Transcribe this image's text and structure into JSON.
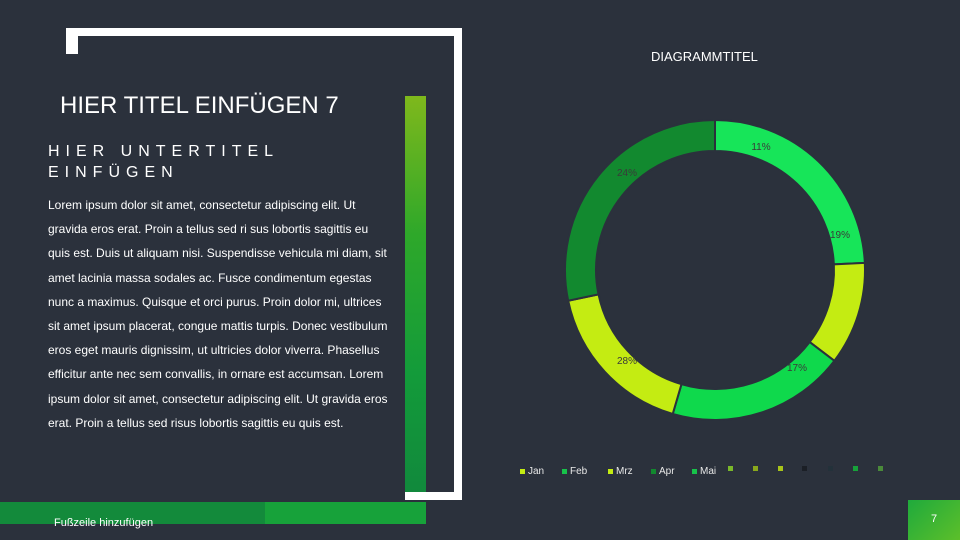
{
  "slide": {
    "title": "HIER TITEL EINFÜGEN 7",
    "subtitle": "HIER UNTERTITEL EINFÜGEN",
    "body": "Lorem ipsum dolor sit amet, consectetur adipiscing elit. Ut gravida eros erat. Proin a tellus sed ri sus lobortis sagittis eu quis est. Duis ut aliquam nisi. Suspendisse vehicula mi diam, sit amet lacinia massa sodales ac. Fusce condimentum egestas nunc a maximus. Quisque et orci purus. Proin dolor mi, ultrices sit amet ipsum placerat, congue mattis turpis. Donec vestibulum eros eget mauris dignissim, ut ultricies dolor viverra. Phasellus efficitur ante nec sem convallis, in ornare est accumsan. Lorem ipsum dolor sit amet, consectetur adipiscing elit. Ut gravida eros erat. Proin a tellus sed risus lobortis sagittis eu quis est.",
    "footer": "Fußzeile hinzufügen",
    "page_number": "7"
  },
  "colors": {
    "background": "#2b313c",
    "accent_green": "#17a23a",
    "lime": "#c4ec12"
  },
  "chart_data": {
    "type": "pie",
    "title": "DIAGRAMMTITEL",
    "donut": true,
    "slices": [
      {
        "label": "24%",
        "value": 24,
        "color": "#17e559"
      },
      {
        "label": "11%",
        "value": 11,
        "color": "#c4ec12"
      },
      {
        "label": "19%",
        "value": 19,
        "color": "#0fd94c"
      },
      {
        "label": "17%",
        "value": 17,
        "color": "#c4ec12"
      },
      {
        "label": "28%",
        "value": 28,
        "color": "#12892f"
      }
    ],
    "legend_position": "bottom",
    "legend": [
      {
        "name": "Jan",
        "color": "#c4ec12"
      },
      {
        "name": "Feb",
        "color": "#17c24a"
      },
      {
        "name": "Mrz",
        "color": "#c4ec12"
      },
      {
        "name": "Apr",
        "color": "#12892f"
      },
      {
        "name": "Mai",
        "color": "#17c24a"
      },
      {
        "name": "",
        "color": "#7ab82a"
      },
      {
        "name": "",
        "color": "#8aa81c"
      },
      {
        "name": "",
        "color": "#a8c41a"
      },
      {
        "name": "",
        "color": "#1b1f26"
      },
      {
        "name": "",
        "color": "#23313a"
      },
      {
        "name": "",
        "color": "#17a23a"
      },
      {
        "name": "",
        "color": "#4a8a3a"
      }
    ]
  }
}
